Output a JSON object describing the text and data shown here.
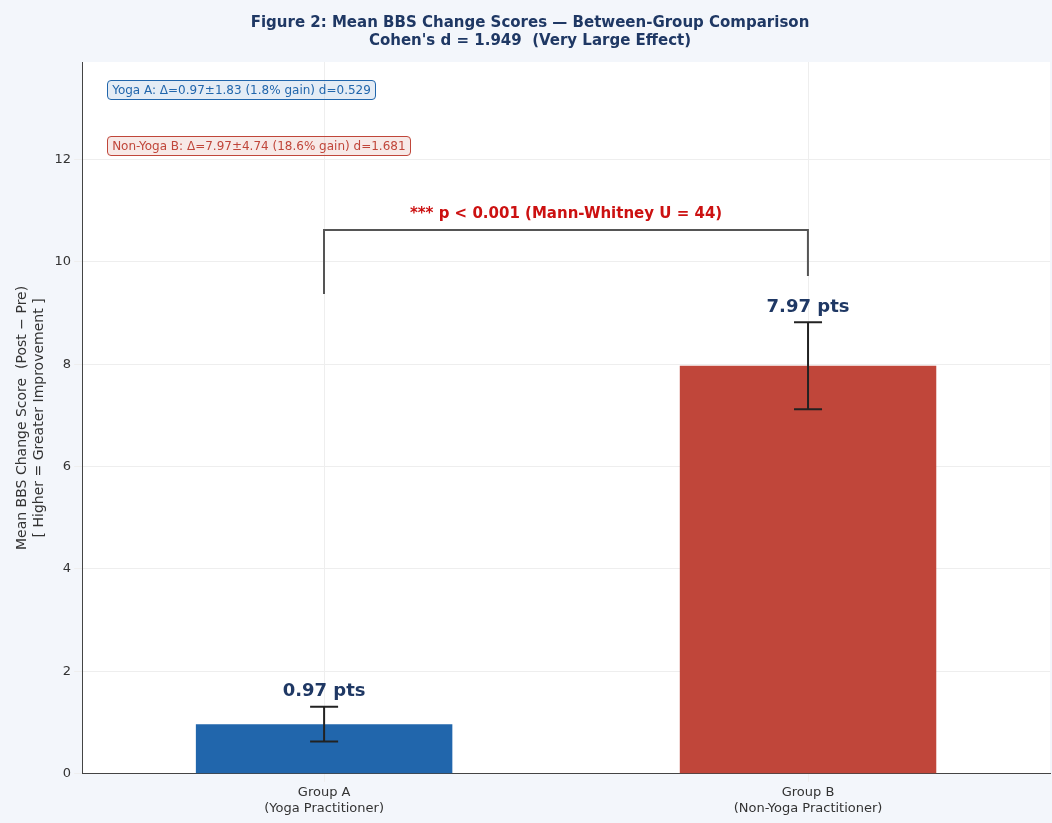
{
  "chart_data": {
    "type": "bar",
    "title": "Figure 2: Mean BBS Change Scores — Between-Group Comparison",
    "subtitle": "Cohen's d = 1.949  (Very Large Effect)",
    "ylabel": "Mean BBS Change Score  (Post − Pre)\n[ Higher = Greater Improvement ]",
    "categories": [
      "Group A\n(Yoga Practitioner)",
      "Group B\n(Non-Yoga Practitioner)"
    ],
    "values": [
      0.97,
      7.97
    ],
    "colors": [
      "#2166ac",
      "#c0463a"
    ],
    "errors": [
      0.34,
      0.85
    ],
    "value_labels": [
      "0.97 pts",
      "7.97 pts"
    ],
    "ylim": [
      0,
      13.9
    ],
    "yticks": [
      0,
      2,
      4,
      6,
      8,
      10,
      12
    ],
    "grid": true,
    "annotations": [
      "Yoga A:  Δ=0.97±1.83  (1.8% gain)  d=0.529",
      "Non-Yoga B:  Δ=7.97±4.74  (18.6% gain)  d=1.681",
      "*** p < 0.001  (Mann-Whitney U = 44)"
    ]
  }
}
